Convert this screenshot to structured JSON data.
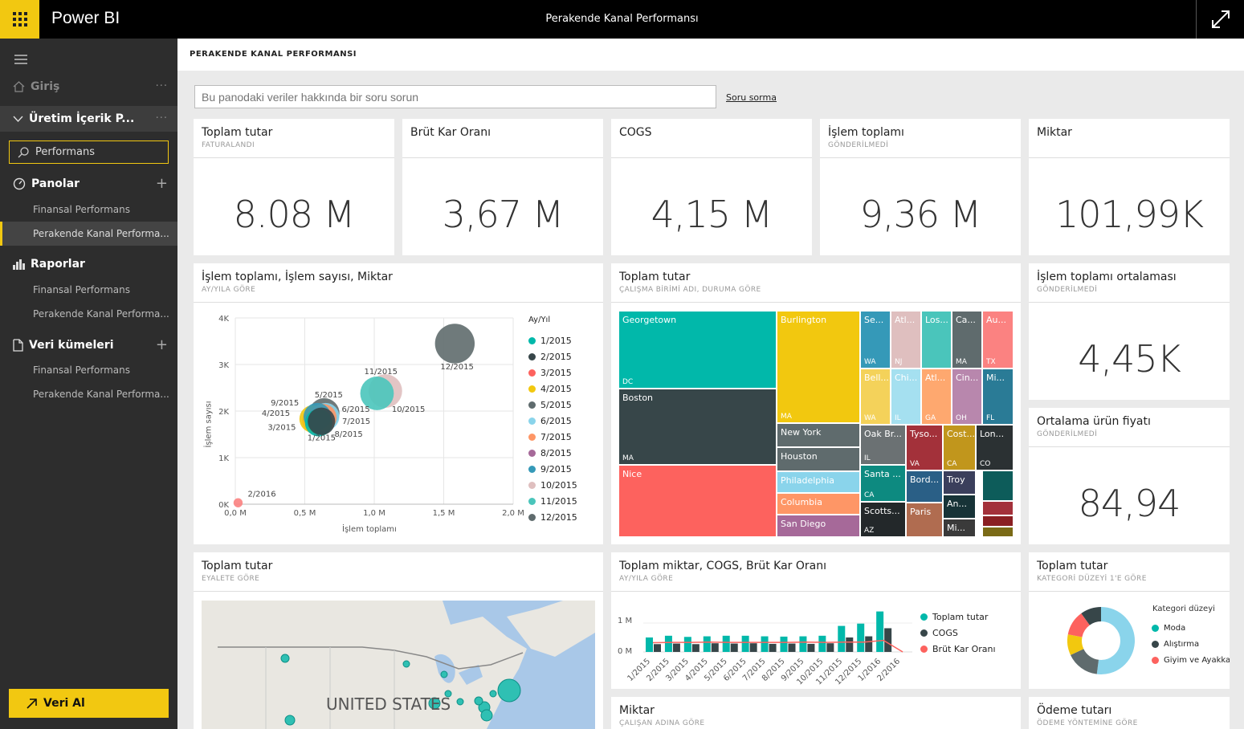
{
  "app": {
    "brand": "Power BI",
    "title": "Perakende Kanal Performansı"
  },
  "sidebar": {
    "home": "Giriş",
    "workspace": "Üretim İçerik P...",
    "search_value": "Performans",
    "dashboards": {
      "label": "Panolar",
      "items": [
        "Finansal Performans",
        "Perakende Kanal Performa..."
      ]
    },
    "reports": {
      "label": "Raporlar",
      "items": [
        "Finansal Performans",
        "Perakende Kanal Performa..."
      ]
    },
    "datasets": {
      "label": "Veri kümeleri",
      "items": [
        "Finansal Performans",
        "Perakende Kanal Performa..."
      ]
    },
    "get_data": "Veri Al"
  },
  "header": {
    "title": "PERAKENDE KANAL PERFORMANSI"
  },
  "qa": {
    "placeholder": "Bu panodaki veriler hakkında bir soru sorun",
    "link": "Soru sorma"
  },
  "kpis": [
    {
      "title": "Toplam tutar",
      "subtitle": "FATURALANDI",
      "value": "8.08 M"
    },
    {
      "title": "Brüt Kar Oranı",
      "subtitle": "",
      "value": "3,67 M"
    },
    {
      "title": "COGS",
      "subtitle": "",
      "value": "4,15 M"
    },
    {
      "title": "İşlem toplamı",
      "subtitle": "GÖNDERİLMEDİ",
      "value": "9,36 M"
    },
    {
      "title": "Miktar",
      "subtitle": "",
      "value": "101,99K"
    }
  ],
  "side_kpis": [
    {
      "title": "İşlem toplamı ortalaması",
      "subtitle": "GÖNDERİLMEDİ",
      "value": "4,45K"
    },
    {
      "title": "Ortalama ürün fiyatı",
      "subtitle": "GÖNDERİLMEDİ",
      "value": "84,94"
    }
  ],
  "scatter": {
    "title": "İşlem toplamı, İşlem sayısı, Miktar",
    "subtitle": "AY/YILA GÖRE",
    "xlabel": "İşlem toplamı",
    "ylabel": "İşlem sayısı",
    "legend_title": "Ay/Yıl",
    "yticks": [
      "4K",
      "3K",
      "2K",
      "1K",
      "0K"
    ],
    "xticks": [
      "0,0 M",
      "0,5 M",
      "1,0 M",
      "1,5 M",
      "2,0 M"
    ]
  },
  "treemap": {
    "title": "Toplam tutar",
    "subtitle": "ÇALIŞMA BİRİMİ ADI, DURUMA GÖRE"
  },
  "map": {
    "title": "Toplam tutar",
    "subtitle": "EYALETE GÖRE",
    "label": "UNITED STATES"
  },
  "combo": {
    "title": "Toplam miktar, COGS, Brüt Kar Oranı",
    "subtitle": "AY/YILA GÖRE",
    "yticks": [
      "1 M",
      "0 M"
    ],
    "legend": [
      "Toplam tutar",
      "COGS",
      "Brüt Kar Oranı"
    ]
  },
  "donut": {
    "title": "Toplam tutar",
    "subtitle": "KATEGORİ DÜZEYİ 1'E GÖRE",
    "legend_title": "Kategori düzeyi",
    "legend": [
      "Moda",
      "Alıştırma",
      "Giyim ve Ayakkabı"
    ]
  },
  "bottom": [
    {
      "title": "Miktar",
      "subtitle": "ÇALIŞAN ADINA GÖRE"
    },
    {
      "title": "Ödeme tutarı",
      "subtitle": "ÖDEME YÖNTEMİNE GÖRE"
    }
  ],
  "chart_data": [
    {
      "type": "scatter",
      "title": "İşlem toplamı, İşlem sayısı, Miktar",
      "xlabel": "İşlem toplamı",
      "ylabel": "İşlem sayısı",
      "xlim": [
        0,
        2000000
      ],
      "ylim": [
        0,
        4000
      ],
      "legend_position": "right",
      "series": [
        {
          "name": "1/2015",
          "x": 600000,
          "y": 1750,
          "size": 9,
          "color": "#01b8aa"
        },
        {
          "name": "2/2015",
          "x": 620000,
          "y": 1780,
          "size": 9,
          "color": "#374649"
        },
        {
          "name": "3/2015",
          "x": 580000,
          "y": 1800,
          "size": 9,
          "color": "#fd625e"
        },
        {
          "name": "4/2015",
          "x": 560000,
          "y": 1830,
          "size": 9,
          "color": "#f2c80f"
        },
        {
          "name": "5/2015",
          "x": 640000,
          "y": 1950,
          "size": 10,
          "color": "#5f6b6d"
        },
        {
          "name": "6/2015",
          "x": 650000,
          "y": 1880,
          "size": 9,
          "color": "#8ad4eb"
        },
        {
          "name": "7/2015",
          "x": 630000,
          "y": 1860,
          "size": 9,
          "color": "#fe9666"
        },
        {
          "name": "8/2015",
          "x": 610000,
          "y": 1790,
          "size": 9,
          "color": "#a66999"
        },
        {
          "name": "9/2015",
          "x": 590000,
          "y": 1880,
          "size": 9,
          "color": "#3599b8"
        },
        {
          "name": "10/2015",
          "x": 1080000,
          "y": 2430,
          "size": 11,
          "color": "#dfbfbf"
        },
        {
          "name": "11/2015",
          "x": 1020000,
          "y": 2380,
          "size": 11,
          "color": "#4ac5bb"
        },
        {
          "name": "12/2015",
          "x": 1580000,
          "y": 3450,
          "size": 13,
          "color": "#5f6b6d"
        },
        {
          "name": "2/2016",
          "x": 20000,
          "y": 30,
          "size": 3,
          "color": "#fb8281"
        }
      ]
    },
    {
      "type": "treemap",
      "title": "Toplam tutar",
      "cells": [
        {
          "label": "Georgetown",
          "state": "DC",
          "color": "#01b8aa"
        },
        {
          "label": "Boston",
          "state": "MA",
          "color": "#374649"
        },
        {
          "label": "Nice",
          "state": "",
          "color": "#fd625e"
        },
        {
          "label": "Burlington",
          "state": "MA",
          "color": "#f2c80f"
        },
        {
          "label": "New York",
          "state": "",
          "color": "#5f6b6d"
        },
        {
          "label": "Houston",
          "state": "",
          "color": "#5f6b6d"
        },
        {
          "label": "Philadelphia",
          "state": "",
          "color": "#8ad4eb"
        },
        {
          "label": "Columbia",
          "state": "",
          "color": "#fe9666"
        },
        {
          "label": "San Diego",
          "state": "",
          "color": "#a66999"
        },
        {
          "label": "Se...",
          "state": "WA",
          "color": "#3599b8"
        },
        {
          "label": "Atl...",
          "state": "NJ",
          "color": "#dfbfbf"
        },
        {
          "label": "Los...",
          "state": "",
          "color": "#4ac5bb"
        },
        {
          "label": "Ca...",
          "state": "MA",
          "color": "#5f6b6d"
        },
        {
          "label": "Au...",
          "state": "TX",
          "color": "#fb8281"
        },
        {
          "label": "Bell...",
          "state": "WA",
          "color": "#f4d25a"
        },
        {
          "label": "Chi...",
          "state": "IL",
          "color": "#a5e0f0"
        },
        {
          "label": "Atl...",
          "state": "GA",
          "color": "#fea86f"
        },
        {
          "label": "Cin...",
          "state": "OH",
          "color": "#b887ad"
        },
        {
          "label": "Mi...",
          "state": "FL",
          "color": "#2a7b96"
        },
        {
          "label": "Oak Br...",
          "state": "IL",
          "color": "#6b7173"
        },
        {
          "label": "Tyso...",
          "state": "VA",
          "color": "#a3313a"
        },
        {
          "label": "Cost...",
          "state": "CA",
          "color": "#c1961c"
        },
        {
          "label": "Lon...",
          "state": "CO",
          "color": "#2b3133"
        },
        {
          "label": "Santa ...",
          "state": "CA",
          "color": "#0d8a80"
        },
        {
          "label": "Bord...",
          "state": "",
          "color": "#2a5f86"
        },
        {
          "label": "Troy",
          "state": "",
          "color": "#3b3f5c"
        },
        {
          "label": "Scotts...",
          "state": "AZ",
          "color": "#23282a"
        },
        {
          "label": "Paris",
          "state": "",
          "color": "#b06c50"
        },
        {
          "label": "An...",
          "state": "",
          "color": "#173337"
        },
        {
          "label": "Mi...",
          "state": "",
          "color": "#3a3a3a"
        }
      ]
    },
    {
      "type": "bar",
      "title": "Toplam miktar, COGS, Brüt Kar Oranı",
      "ylim": [
        0,
        1500000
      ],
      "categories": [
        "1/2015",
        "2/2015",
        "3/2015",
        "4/2015",
        "5/2015",
        "6/2015",
        "7/2015",
        "8/2015",
        "9/2015",
        "10/2015",
        "11/2015",
        "12/2015",
        "1/2016",
        "2/2016"
      ],
      "series": [
        {
          "name": "Toplam tutar",
          "type": "bar",
          "color": "#01b8aa",
          "values": [
            500000,
            560000,
            520000,
            540000,
            560000,
            560000,
            540000,
            530000,
            540000,
            560000,
            900000,
            980000,
            1400000,
            0
          ]
        },
        {
          "name": "COGS",
          "type": "bar",
          "color": "#374649",
          "values": [
            270000,
            290000,
            270000,
            300000,
            290000,
            300000,
            280000,
            290000,
            280000,
            300000,
            500000,
            540000,
            820000,
            0
          ]
        },
        {
          "name": "Brüt Kar Oranı",
          "type": "line",
          "color": "#fd625e",
          "values": [
            320000,
            330000,
            330000,
            340000,
            330000,
            330000,
            330000,
            330000,
            340000,
            330000,
            340000,
            340000,
            400000,
            0
          ]
        }
      ]
    },
    {
      "type": "pie",
      "title": "Toplam tutar",
      "slices": [
        {
          "name": "Moda",
          "value": 52,
          "color": "#8ad4eb"
        },
        {
          "name": "",
          "value": 16,
          "color": "#5f6b6d"
        },
        {
          "name": "",
          "value": 10,
          "color": "#f2c80f"
        },
        {
          "name": "Giyim ve Ayakkabı",
          "value": 12,
          "color": "#fd625e"
        },
        {
          "name": "Alıştırma",
          "value": 10,
          "color": "#374649"
        }
      ]
    }
  ]
}
